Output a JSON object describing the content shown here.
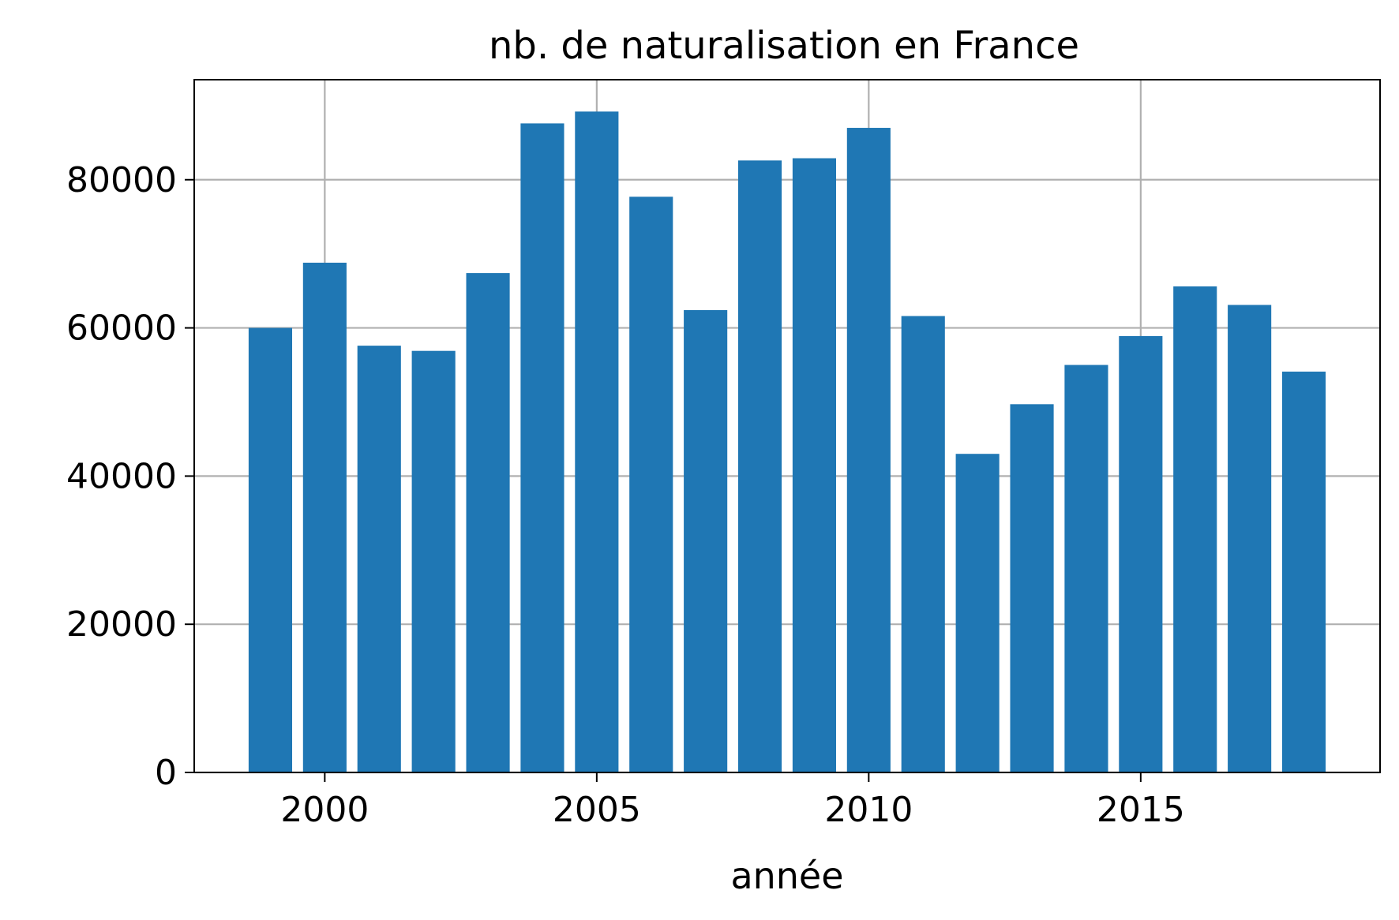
{
  "chart_data": {
    "type": "bar",
    "title": "nb. de naturalisation en France",
    "xlabel": "année",
    "ylabel": "",
    "x": [
      1999,
      2000,
      2001,
      2002,
      2003,
      2004,
      2005,
      2006,
      2007,
      2008,
      2009,
      2010,
      2011,
      2012,
      2013,
      2014,
      2015,
      2016,
      2017,
      2018
    ],
    "values": [
      60000,
      68800,
      57600,
      56900,
      67400,
      87600,
      89200,
      77700,
      62400,
      82600,
      82900,
      87000,
      61600,
      43000,
      49700,
      55000,
      58900,
      65600,
      63100,
      54100
    ],
    "xlim": [
      1997.6,
      2019.4
    ],
    "ylim": [
      0,
      93500
    ],
    "xticks": [
      "2000",
      "2005",
      "2010",
      "2015"
    ],
    "yticks": [
      "0",
      "20000",
      "40000",
      "60000",
      "80000"
    ],
    "grid": true,
    "bar_color": "#1f77b4",
    "grid_color": "#b0b0b0"
  }
}
